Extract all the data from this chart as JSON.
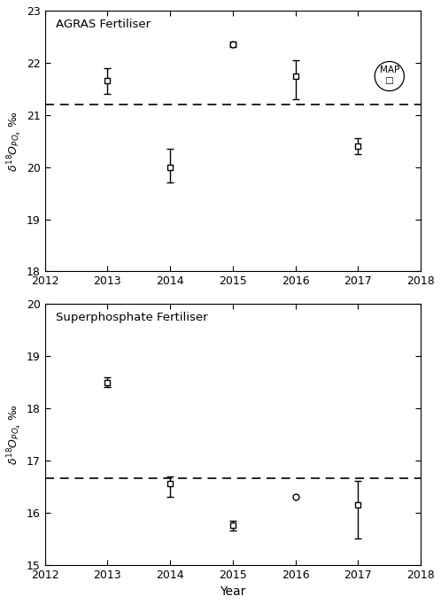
{
  "agras": {
    "title": "AGRAS Fertiliser",
    "years": [
      2013,
      2014,
      2015,
      2016,
      2017
    ],
    "values": [
      21.65,
      20.0,
      22.35,
      21.75,
      20.4
    ],
    "yerr_low": [
      0.25,
      0.3,
      0.05,
      0.45,
      0.15
    ],
    "yerr_high": [
      0.25,
      0.35,
      0.05,
      0.3,
      0.15
    ],
    "markers": [
      "s",
      "s",
      "o",
      "s",
      "s"
    ],
    "mean_line": 21.2,
    "map_x": 2017.5,
    "map_y": 21.75,
    "ylim": [
      18,
      23
    ],
    "yticks": [
      18,
      19,
      20,
      21,
      22,
      23
    ]
  },
  "super": {
    "title": "Superphosphate Fertiliser",
    "years": [
      2013,
      2014,
      2015,
      2016,
      2017
    ],
    "values": [
      18.5,
      16.55,
      15.75,
      16.3,
      16.15
    ],
    "yerr_low": [
      0.1,
      0.25,
      0.1,
      0.0,
      0.65
    ],
    "yerr_high": [
      0.1,
      0.15,
      0.1,
      0.0,
      0.45
    ],
    "markers": [
      "s",
      "s",
      "s",
      "o",
      "s"
    ],
    "mean_line": 16.65,
    "ylim": [
      15,
      20
    ],
    "yticks": [
      15,
      16,
      17,
      18,
      19,
      20
    ]
  },
  "xlabel": "Year",
  "xlim": [
    2012,
    2018
  ],
  "xticks": [
    2012,
    2013,
    2014,
    2015,
    2016,
    2017,
    2018
  ],
  "background": "#ffffff"
}
